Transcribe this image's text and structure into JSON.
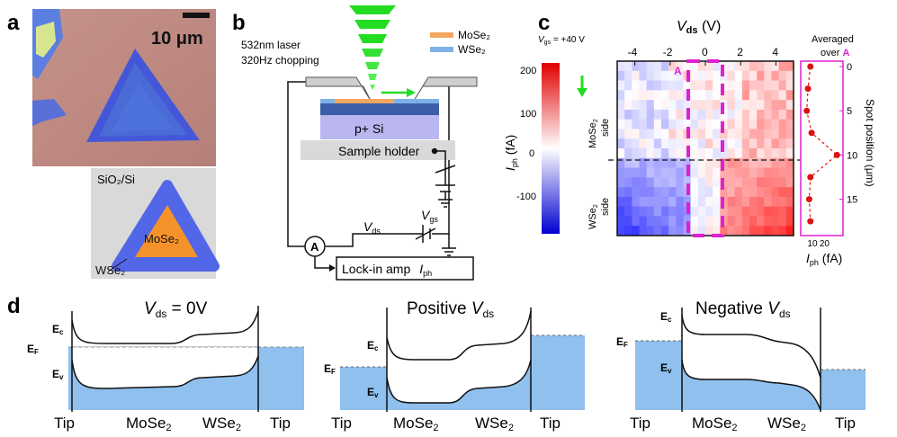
{
  "panels": {
    "a": {
      "label": "a",
      "scale_bar": "10 μm",
      "diagram": {
        "substrate": "SiO₂/Si",
        "core": "MoSe₂",
        "shell": "WSe₂"
      },
      "colors": {
        "photo_bg": "#c08c86",
        "triangle_fill": "#4a6bd6",
        "core": "#f5932a",
        "shell": "#5267e8",
        "diagram_bg": "#d9d9d9"
      }
    },
    "b": {
      "label": "b",
      "laser": "532nm laser",
      "chopping": "320Hz chopping",
      "legend": [
        {
          "name": "MoSe₂",
          "color": "#f3a65f"
        },
        {
          "name": "WSe₂",
          "color": "#7fb1e7"
        }
      ],
      "substrate": "p+ Si",
      "holder": "Sample holder",
      "vgs": "V",
      "vgs_sub": "gs",
      "vds": "V",
      "vds_sub": "ds",
      "ammeter": "A",
      "lockin": "Lock-in amp",
      "iph": "I",
      "iph_sub": "ph"
    },
    "c": {
      "label": "c",
      "vgs_note": "V",
      "vgs_note_sub": "gs",
      "vgs_note_val": " = +40 V",
      "xlabel": "V",
      "xlabel_sub": "ds",
      "xlabel_unit": " (V)",
      "ylabel": "I",
      "ylabel_sub": "ph",
      "ylabel_unit": " (fA)",
      "mose2_side": "MoSe",
      "mose2_side_sub": "2",
      "mose2_side_word": " side",
      "wse2_side": "WSe",
      "wse2_side_sub": "2",
      "wse2_side_word": " side",
      "region_label": "A",
      "averaged": "Averaged",
      "over": "over ",
      "right_ylabel": "Spot position (μm)",
      "right_xlabel": "I",
      "right_xlabel_sub": "ph",
      "right_xlabel_unit": " (fA)",
      "colorbar_ticks": [
        "200",
        "100",
        "0",
        "-100"
      ],
      "x_ticks": [
        "-4",
        "-2",
        "0",
        "2",
        "4"
      ],
      "right_y_ticks": [
        "0",
        "5",
        "10",
        "15"
      ],
      "right_x_ticks": [
        "10",
        "20"
      ]
    },
    "d": {
      "label": "d",
      "diagrams": [
        {
          "title": "V",
          "title_sub": "ds",
          "title_rest": " = 0V",
          "title_prefix": ""
        },
        {
          "title": "V",
          "title_sub": "ds",
          "title_rest": "",
          "title_prefix": "Positive "
        },
        {
          "title": "V",
          "title_sub": "ds",
          "title_rest": "",
          "title_prefix": "Negative "
        }
      ],
      "ec": "E",
      "ec_sub": "c",
      "ev": "E",
      "ev_sub": "v",
      "ef": "E",
      "ef_sub": "F",
      "x_labels": [
        "Tip",
        "MoSe",
        "WSe",
        "Tip"
      ],
      "sub2": "2"
    }
  },
  "chart_data": {
    "type": "heatmap",
    "x_ticks": [
      -4,
      -2,
      0,
      2,
      4
    ],
    "xlim": [
      -5,
      5
    ],
    "colorbar_range": [
      -200,
      200
    ],
    "spot_position_ticks": [
      0,
      5,
      10,
      15
    ],
    "averaged_iph_fA": [
      {
        "spot": 0,
        "iph": 8
      },
      {
        "spot": 2.5,
        "iph": 6
      },
      {
        "spot": 5,
        "iph": 5
      },
      {
        "spot": 7.5,
        "iph": 9
      },
      {
        "spot": 10,
        "iph": 30
      },
      {
        "spot": 12.5,
        "iph": 8
      },
      {
        "spot": 15,
        "iph": 7
      },
      {
        "spot": 17.5,
        "iph": 8
      }
    ],
    "averaged_xlim": [
      0,
      35
    ]
  }
}
